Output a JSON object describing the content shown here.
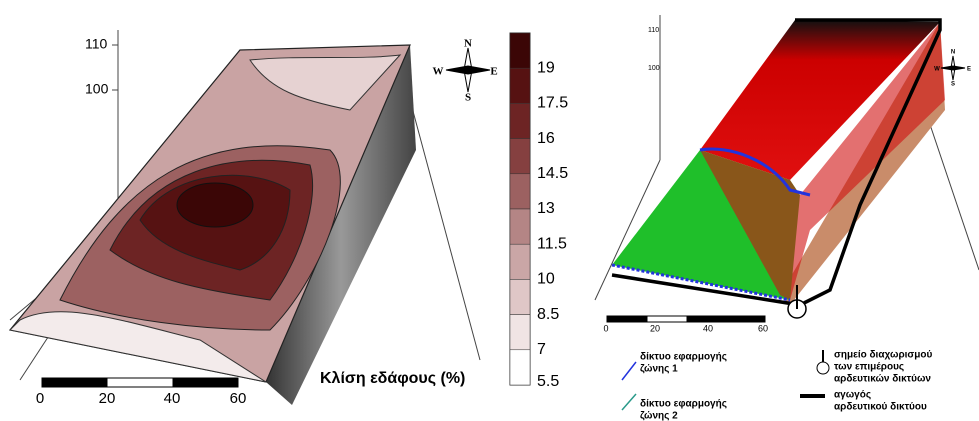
{
  "left_map": {
    "elevation_labels": [
      110,
      100
    ],
    "compass": {
      "n": "N",
      "s": "S",
      "w": "W",
      "e": "E"
    },
    "scale_bar": [
      0,
      20,
      40,
      60
    ],
    "legend_title": "Κλίση εδάφους (%)",
    "legend_ticks": [
      19,
      17.5,
      16,
      14.5,
      13,
      11.5,
      10,
      8.5,
      7,
      5.5
    ],
    "legend_colors": [
      "#3b0606",
      "#561212",
      "#6d2424",
      "#854040",
      "#9c6161",
      "#b48585",
      "#caa6a6",
      "#dfc7c7",
      "#f0e4e4",
      "#ffffff"
    ]
  },
  "right_map": {
    "elevation_labels": [
      110,
      100
    ],
    "compass": {
      "n": "N",
      "s": "S",
      "w": "W",
      "e": "E"
    },
    "scale_bar": [
      0,
      20,
      40,
      60
    ],
    "legend": [
      {
        "lines": [
          "δίκτυο εφαρμογής",
          "ζώνης 1"
        ]
      },
      {
        "lines": [
          "σημείο διαχωρισμού",
          "των επιμέρους",
          "αρδευτικών δικτύων"
        ]
      },
      {
        "lines": [
          "δίκτυο εφαρμογής",
          "ζώνης 2"
        ]
      },
      {
        "lines": [
          "αγωγός",
          "αρδευτικού δικτύου"
        ]
      }
    ]
  }
}
